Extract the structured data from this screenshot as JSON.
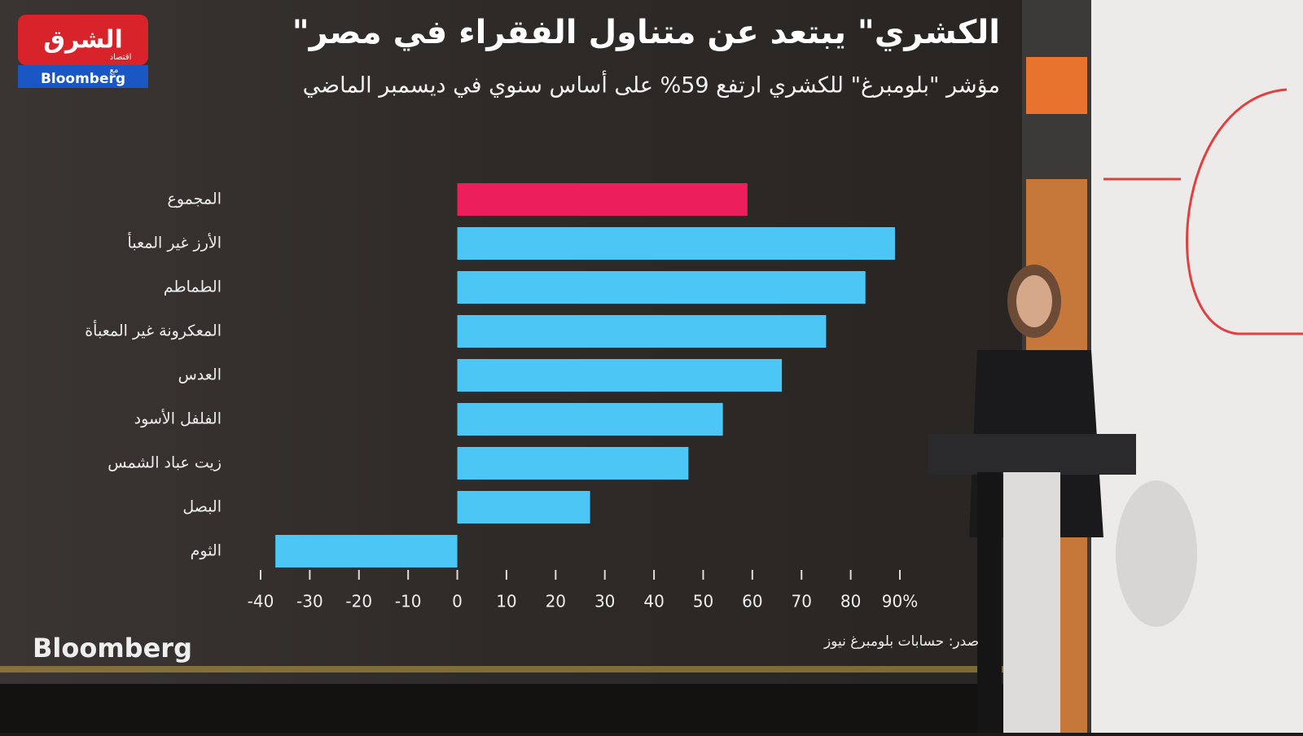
{
  "logo": {
    "brand": "الشرق",
    "tag": "اقتصاد",
    "with": "مع",
    "partner": "Bloomberg"
  },
  "watermark": "Bloomberg",
  "chart_data": {
    "type": "bar",
    "orientation": "horizontal",
    "title": "\"الكشري\" يبتعد عن متناول الفقراء في مصر",
    "subtitle": "مؤشر \"بلومبرغ\" للكشري ارتفع 59% على أساس سنوي في ديسمبر الماضي",
    "source": "صدر: حسابات بلومبرغ نيوز",
    "categories": [
      "المجموع",
      "الأرز غير المعبأ",
      "الطماطم",
      "المعكرونة غير المعبأة",
      "العدس",
      "الفلفل الأسود",
      "زيت عباد الشمس",
      "البصل",
      "الثوم"
    ],
    "values": [
      59,
      89,
      83,
      75,
      66,
      54,
      47,
      27,
      -37
    ],
    "colors": [
      "#ec1f5c",
      "#4cc6f5",
      "#4cc6f5",
      "#4cc6f5",
      "#4cc6f5",
      "#4cc6f5",
      "#4cc6f5",
      "#4cc6f5",
      "#4cc6f5"
    ],
    "xlim": [
      -40,
      90
    ],
    "xticks": [
      -40,
      -30,
      -20,
      -10,
      0,
      10,
      20,
      30,
      40,
      50,
      60,
      70,
      80,
      {
        "value": 90,
        "label": "90%"
      }
    ]
  }
}
